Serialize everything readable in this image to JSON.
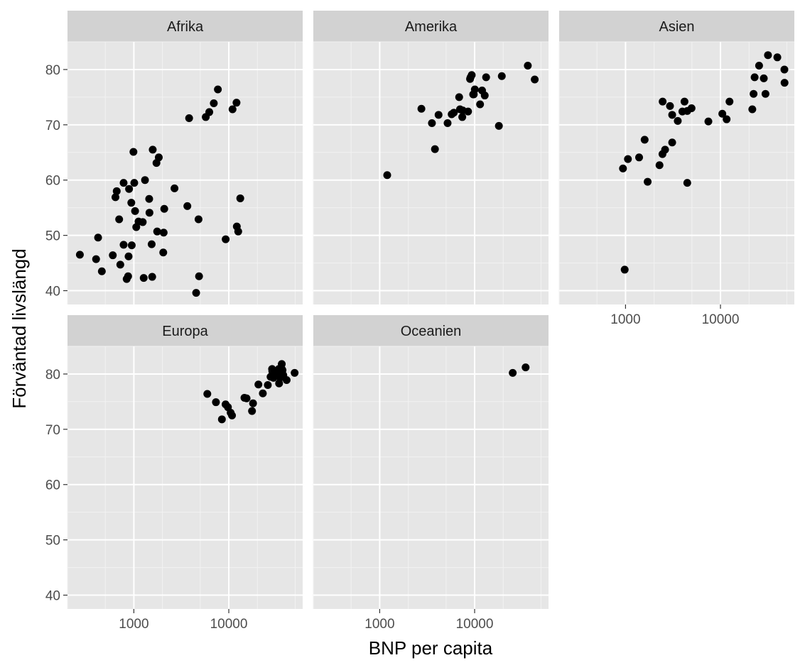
{
  "chart_data": {
    "type": "scatter",
    "xlabel": "BNP per capita",
    "ylabel": "Förväntad livslängd",
    "x_scale": "log10",
    "xlim": [
      200,
      60000
    ],
    "ylim": [
      37.5,
      85
    ],
    "x_ticks": [
      1000,
      10000
    ],
    "x_tick_labels": [
      "1000",
      "10000"
    ],
    "y_ticks": [
      40,
      50,
      60,
      70,
      80
    ],
    "y_tick_labels": [
      "40",
      "50",
      "60",
      "70",
      "80"
    ],
    "panel_bg": "#e6e6e6",
    "strip_bg": "#d2d2d2",
    "point_color": "#000000",
    "facets": [
      {
        "name": "Afrika",
        "points": [
          [
            270,
            46.5
          ],
          [
            420,
            49.6
          ],
          [
            400,
            45.7
          ],
          [
            460,
            43.5
          ],
          [
            600,
            46.4
          ],
          [
            640,
            56.9
          ],
          [
            660,
            58.0
          ],
          [
            700,
            52.9
          ],
          [
            720,
            44.7
          ],
          [
            780,
            59.5
          ],
          [
            780,
            48.3
          ],
          [
            840,
            42.1
          ],
          [
            870,
            42.6
          ],
          [
            880,
            46.2
          ],
          [
            890,
            58.4
          ],
          [
            940,
            55.9
          ],
          [
            950,
            48.2
          ],
          [
            990,
            65.1
          ],
          [
            1010,
            59.5
          ],
          [
            1030,
            54.4
          ],
          [
            1060,
            51.5
          ],
          [
            1120,
            52.5
          ],
          [
            1240,
            52.4
          ],
          [
            1270,
            42.3
          ],
          [
            1310,
            60.0
          ],
          [
            1450,
            56.6
          ],
          [
            1460,
            54.1
          ],
          [
            1540,
            48.4
          ],
          [
            1560,
            42.5
          ],
          [
            1580,
            65.5
          ],
          [
            1730,
            63.1
          ],
          [
            1760,
            50.7
          ],
          [
            1830,
            64.1
          ],
          [
            2040,
            46.9
          ],
          [
            2060,
            50.5
          ],
          [
            2090,
            54.8
          ],
          [
            2680,
            58.5
          ],
          [
            3660,
            55.3
          ],
          [
            3820,
            71.2
          ],
          [
            4530,
            39.6
          ],
          [
            4800,
            52.9
          ],
          [
            4860,
            42.6
          ],
          [
            5720,
            71.4
          ],
          [
            6230,
            72.3
          ],
          [
            6950,
            73.9
          ],
          [
            7670,
            76.4
          ],
          [
            9270,
            49.3
          ],
          [
            10950,
            72.8
          ],
          [
            12060,
            74.0
          ],
          [
            12150,
            51.6
          ],
          [
            12570,
            50.7
          ],
          [
            13210,
            56.7
          ]
        ]
      },
      {
        "name": "Amerika",
        "points": [
          [
            1200,
            60.9
          ],
          [
            2750,
            72.9
          ],
          [
            3550,
            70.3
          ],
          [
            3820,
            65.6
          ],
          [
            4170,
            71.8
          ],
          [
            5190,
            70.3
          ],
          [
            5730,
            71.9
          ],
          [
            6030,
            72.2
          ],
          [
            6870,
            75.0
          ],
          [
            7010,
            72.8
          ],
          [
            7410,
            71.4
          ],
          [
            7500,
            72.6
          ],
          [
            8530,
            72.4
          ],
          [
            8950,
            78.3
          ],
          [
            9070,
            78.6
          ],
          [
            9320,
            79.0
          ],
          [
            9650,
            75.5
          ],
          [
            9790,
            75.5
          ],
          [
            10050,
            76.4
          ],
          [
            11410,
            73.7
          ],
          [
            11980,
            76.2
          ],
          [
            12780,
            75.3
          ],
          [
            13210,
            78.6
          ],
          [
            18010,
            69.8
          ],
          [
            19330,
            78.8
          ],
          [
            36320,
            80.7
          ],
          [
            42950,
            78.2
          ]
        ]
      },
      {
        "name": "Asien",
        "points": [
          [
            940,
            62.1
          ],
          [
            980,
            43.8
          ],
          [
            1060,
            63.8
          ],
          [
            1390,
            64.1
          ],
          [
            1590,
            67.3
          ],
          [
            1710,
            59.7
          ],
          [
            2280,
            62.7
          ],
          [
            2450,
            64.7
          ],
          [
            2460,
            74.2
          ],
          [
            2610,
            65.5
          ],
          [
            2940,
            73.4
          ],
          [
            3100,
            66.8
          ],
          [
            3100,
            71.8
          ],
          [
            3550,
            70.7
          ],
          [
            3970,
            72.4
          ],
          [
            4180,
            74.2
          ],
          [
            4470,
            72.5
          ],
          [
            4470,
            59.5
          ],
          [
            4960,
            73.0
          ],
          [
            7460,
            70.6
          ],
          [
            10460,
            72.0
          ],
          [
            11610,
            71.0
          ],
          [
            12450,
            74.2
          ],
          [
            21650,
            72.8
          ],
          [
            22320,
            75.6
          ],
          [
            22900,
            78.6
          ],
          [
            25520,
            80.7
          ],
          [
            28600,
            78.4
          ],
          [
            29800,
            75.6
          ],
          [
            31660,
            82.6
          ],
          [
            39720,
            82.2
          ],
          [
            47140,
            80.0
          ],
          [
            47310,
            77.6
          ]
        ]
      },
      {
        "name": "Europa",
        "points": [
          [
            5940,
            76.4
          ],
          [
            7320,
            74.9
          ],
          [
            8460,
            71.8
          ],
          [
            9250,
            74.5
          ],
          [
            9790,
            74.0
          ],
          [
            10460,
            73.0
          ],
          [
            10810,
            72.5
          ],
          [
            14620,
            75.7
          ],
          [
            15390,
            75.6
          ],
          [
            17560,
            73.3
          ],
          [
            18010,
            74.7
          ],
          [
            20510,
            78.1
          ],
          [
            22830,
            76.5
          ],
          [
            25770,
            78.0
          ],
          [
            27540,
            79.5
          ],
          [
            28570,
            80.9
          ],
          [
            28720,
            80.5
          ],
          [
            29480,
            79.3
          ],
          [
            30470,
            80.0
          ],
          [
            32170,
            80.2
          ],
          [
            33210,
            79.8
          ],
          [
            33690,
            80.9
          ],
          [
            33860,
            78.3
          ],
          [
            34440,
            79.4
          ],
          [
            35280,
            79.4
          ],
          [
            36130,
            81.8
          ],
          [
            36180,
            80.9
          ],
          [
            36800,
            80.7
          ],
          [
            37510,
            79.8
          ],
          [
            40680,
            78.9
          ],
          [
            49360,
            80.2
          ]
        ]
      },
      {
        "name": "Oceanien",
        "points": [
          [
            25190,
            80.2
          ],
          [
            34440,
            81.2
          ]
        ]
      }
    ]
  }
}
